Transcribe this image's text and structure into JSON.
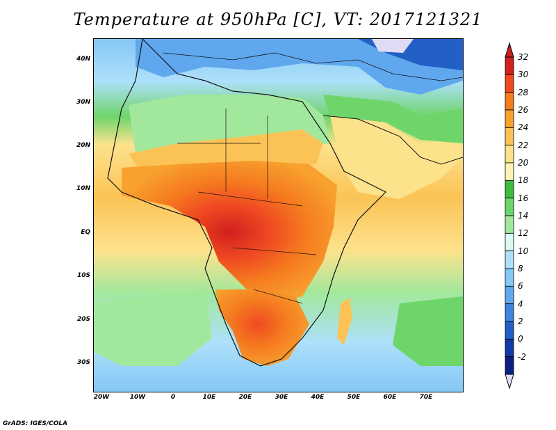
{
  "title": "Temperature at 950hPa [C], VT: 2017121321",
  "footer": "GrADS: IGES/COLA",
  "map": {
    "lon_range": [
      -22,
      80
    ],
    "lat_range": [
      -36,
      45
    ],
    "lat_labels": [
      "40N",
      "30N",
      "20N",
      "10N",
      "EQ",
      "10S",
      "20S",
      "30S"
    ],
    "lon_labels": [
      "20W",
      "10W",
      "0",
      "10E",
      "20E",
      "30E",
      "40E",
      "50E",
      "60E",
      "70E"
    ],
    "ocean_color": "#fff0a8",
    "land_hot_color": "#f26a1b"
  },
  "colorbar": {
    "labels": [
      "32",
      "30",
      "28",
      "26",
      "24",
      "22",
      "20",
      "18",
      "16",
      "14",
      "12",
      "10",
      "8",
      "6",
      "4",
      "2",
      "0",
      "-2"
    ],
    "colors": [
      "#d2201e",
      "#f04a22",
      "#f57b1f",
      "#f8a12e",
      "#fbc356",
      "#fde28c",
      "#fff3b3",
      "#3fbb3f",
      "#6ed56b",
      "#a2e89c",
      "#dcf8f0",
      "#aee0fa",
      "#85c7f5",
      "#5fa8ee",
      "#3d86dd",
      "#2260c6",
      "#123aa6",
      "#0b1f7e"
    ],
    "top_arrow_color": "#c81e1e",
    "bottom_arrow_color": "#e0dbf5"
  }
}
